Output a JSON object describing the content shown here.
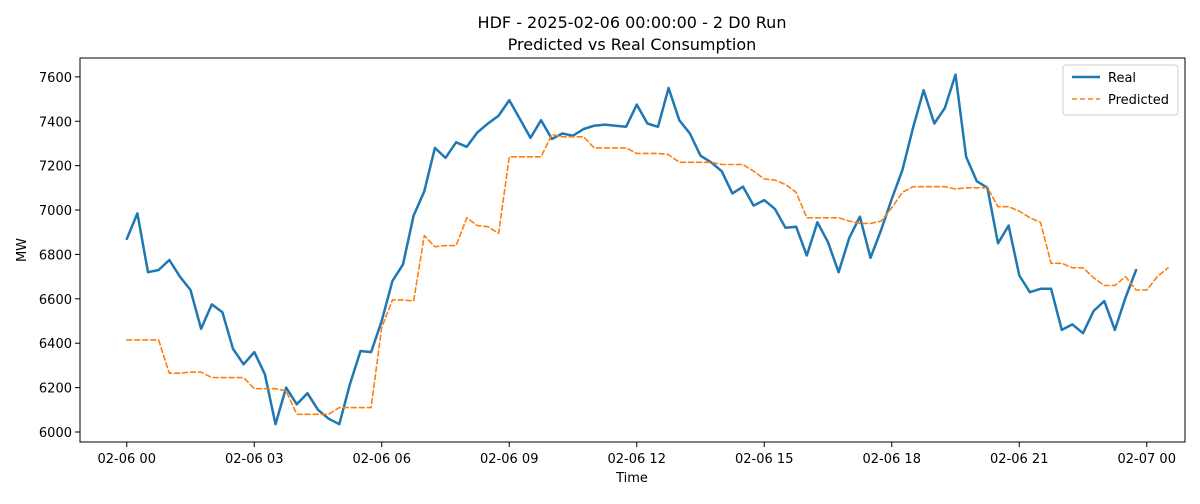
{
  "colors": {
    "real": "#1f77b4",
    "predicted": "#ff7f0e",
    "axis": "#000000",
    "legend_border": "#cccccc"
  },
  "chart_data": {
    "type": "line",
    "title": "HDF - 2025-02-06 00:00:00 - 2 D0 Run",
    "subtitle": "Predicted vs Real Consumption",
    "xlabel": "Time",
    "ylabel": "MW",
    "x_range_hours": [
      -1.1,
      24.9
    ],
    "ylim": [
      5955,
      7685
    ],
    "grid": false,
    "legend_position": "top-right",
    "x_ticks": [
      {
        "hour": 0,
        "label": "02-06 00"
      },
      {
        "hour": 3,
        "label": "02-06 03"
      },
      {
        "hour": 6,
        "label": "02-06 06"
      },
      {
        "hour": 9,
        "label": "02-06 09"
      },
      {
        "hour": 12,
        "label": "02-06 12"
      },
      {
        "hour": 15,
        "label": "02-06 15"
      },
      {
        "hour": 18,
        "label": "02-06 18"
      },
      {
        "hour": 21,
        "label": "02-06 21"
      },
      {
        "hour": 24,
        "label": "02-07 00"
      }
    ],
    "y_ticks": [
      {
        "value": 6000,
        "label": "6000"
      },
      {
        "value": 6200,
        "label": "6200"
      },
      {
        "value": 6400,
        "label": "6400"
      },
      {
        "value": 6600,
        "label": "6600"
      },
      {
        "value": 6800,
        "label": "6800"
      },
      {
        "value": 7000,
        "label": "7000"
      },
      {
        "value": 7200,
        "label": "7200"
      },
      {
        "value": 7400,
        "label": "7400"
      },
      {
        "value": 7600,
        "label": "7600"
      }
    ],
    "x_step_hours": 0.25,
    "series": [
      {
        "name": "Real",
        "style": "solid",
        "values": [
          6870,
          6985,
          6720,
          6730,
          6775,
          6700,
          6640,
          6465,
          6575,
          6540,
          6375,
          6305,
          6360,
          6260,
          6035,
          6200,
          6125,
          6175,
          6100,
          6060,
          6035,
          6215,
          6365,
          6360,
          6500,
          6680,
          6755,
          6975,
          7085,
          7280,
          7235,
          7305,
          7285,
          7350,
          7390,
          7425,
          7495,
          7410,
          7325,
          7405,
          7320,
          7345,
          7335,
          7365,
          7380,
          7385,
          7380,
          7375,
          7475,
          7390,
          7375,
          7550,
          7405,
          7345,
          7245,
          7215,
          7175,
          7075,
          7105,
          7020,
          7045,
          7005,
          6920,
          6925,
          6795,
          6945,
          6855,
          6720,
          6875,
          6970,
          6785,
          6910,
          7050,
          7180,
          7370,
          7540,
          7390,
          7460,
          7610,
          7240,
          7130,
          7100,
          6850,
          6930,
          6705,
          6630,
          6645,
          6645,
          6460,
          6485,
          6445,
          6545,
          6590,
          6460,
          6605,
          6730
        ]
      },
      {
        "name": "Predicted",
        "style": "dashed",
        "values": [
          6415,
          6415,
          6415,
          6415,
          6265,
          6265,
          6270,
          6270,
          6245,
          6245,
          6245,
          6245,
          6195,
          6195,
          6195,
          6185,
          6080,
          6080,
          6080,
          6080,
          6110,
          6110,
          6110,
          6110,
          6470,
          6595,
          6595,
          6590,
          6885,
          6835,
          6840,
          6840,
          6965,
          6930,
          6925,
          6895,
          7240,
          7240,
          7240,
          7240,
          7340,
          7330,
          7330,
          7330,
          7280,
          7280,
          7280,
          7280,
          7255,
          7255,
          7255,
          7250,
          7215,
          7215,
          7215,
          7215,
          7205,
          7205,
          7205,
          7175,
          7140,
          7135,
          7115,
          7080,
          6965,
          6965,
          6965,
          6965,
          6950,
          6940,
          6940,
          6950,
          7010,
          7080,
          7105,
          7105,
          7105,
          7105,
          7095,
          7100,
          7100,
          7100,
          7015,
          7015,
          6995,
          6965,
          6945,
          6760,
          6760,
          6740,
          6740,
          6695,
          6660,
          6660,
          6700,
          6640,
          6640,
          6700,
          6740
        ]
      }
    ]
  }
}
